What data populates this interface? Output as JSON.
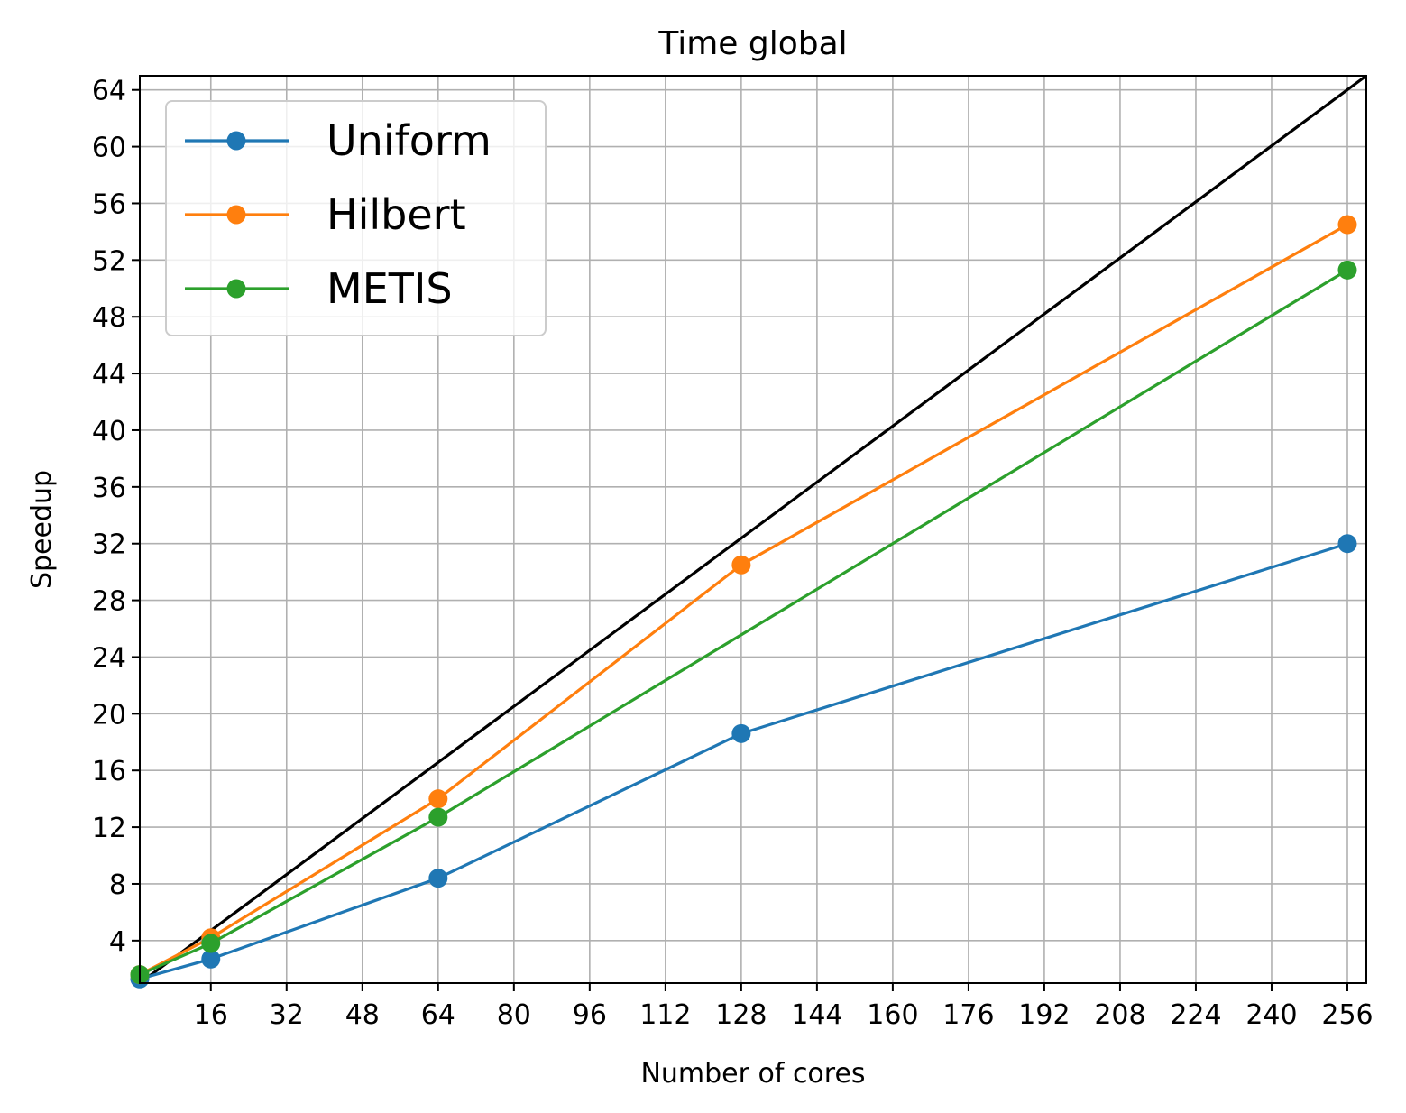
{
  "chart_data": {
    "type": "line",
    "title": "Time global",
    "xlabel": "Number of cores",
    "ylabel": "Speedup",
    "xlim": [
      1,
      260
    ],
    "ylim": [
      1,
      65
    ],
    "xticks": [
      16,
      32,
      48,
      64,
      80,
      96,
      112,
      128,
      144,
      160,
      176,
      192,
      208,
      224,
      240,
      256
    ],
    "yticks": [
      4,
      8,
      12,
      16,
      20,
      24,
      28,
      32,
      36,
      40,
      44,
      48,
      52,
      56,
      60,
      64
    ],
    "grid": true,
    "legend_position": "top-left",
    "ideal_line": {
      "x": [
        1,
        260
      ],
      "y": [
        1,
        65
      ],
      "color": "#000000"
    },
    "series": [
      {
        "name": "Uniform",
        "color": "#1f77b4",
        "x": [
          1,
          16,
          64,
          128,
          256
        ],
        "y": [
          1.3,
          2.7,
          8.4,
          18.6,
          32.0
        ]
      },
      {
        "name": "Hilbert",
        "color": "#ff7f0e",
        "x": [
          1,
          16,
          64,
          128,
          256
        ],
        "y": [
          1.6,
          4.2,
          14.0,
          30.5,
          54.5
        ]
      },
      {
        "name": "METIS",
        "color": "#2ca02c",
        "x": [
          1,
          16,
          64,
          128,
          256
        ],
        "y": [
          1.6,
          3.8,
          12.7,
          null,
          51.3
        ]
      }
    ]
  }
}
